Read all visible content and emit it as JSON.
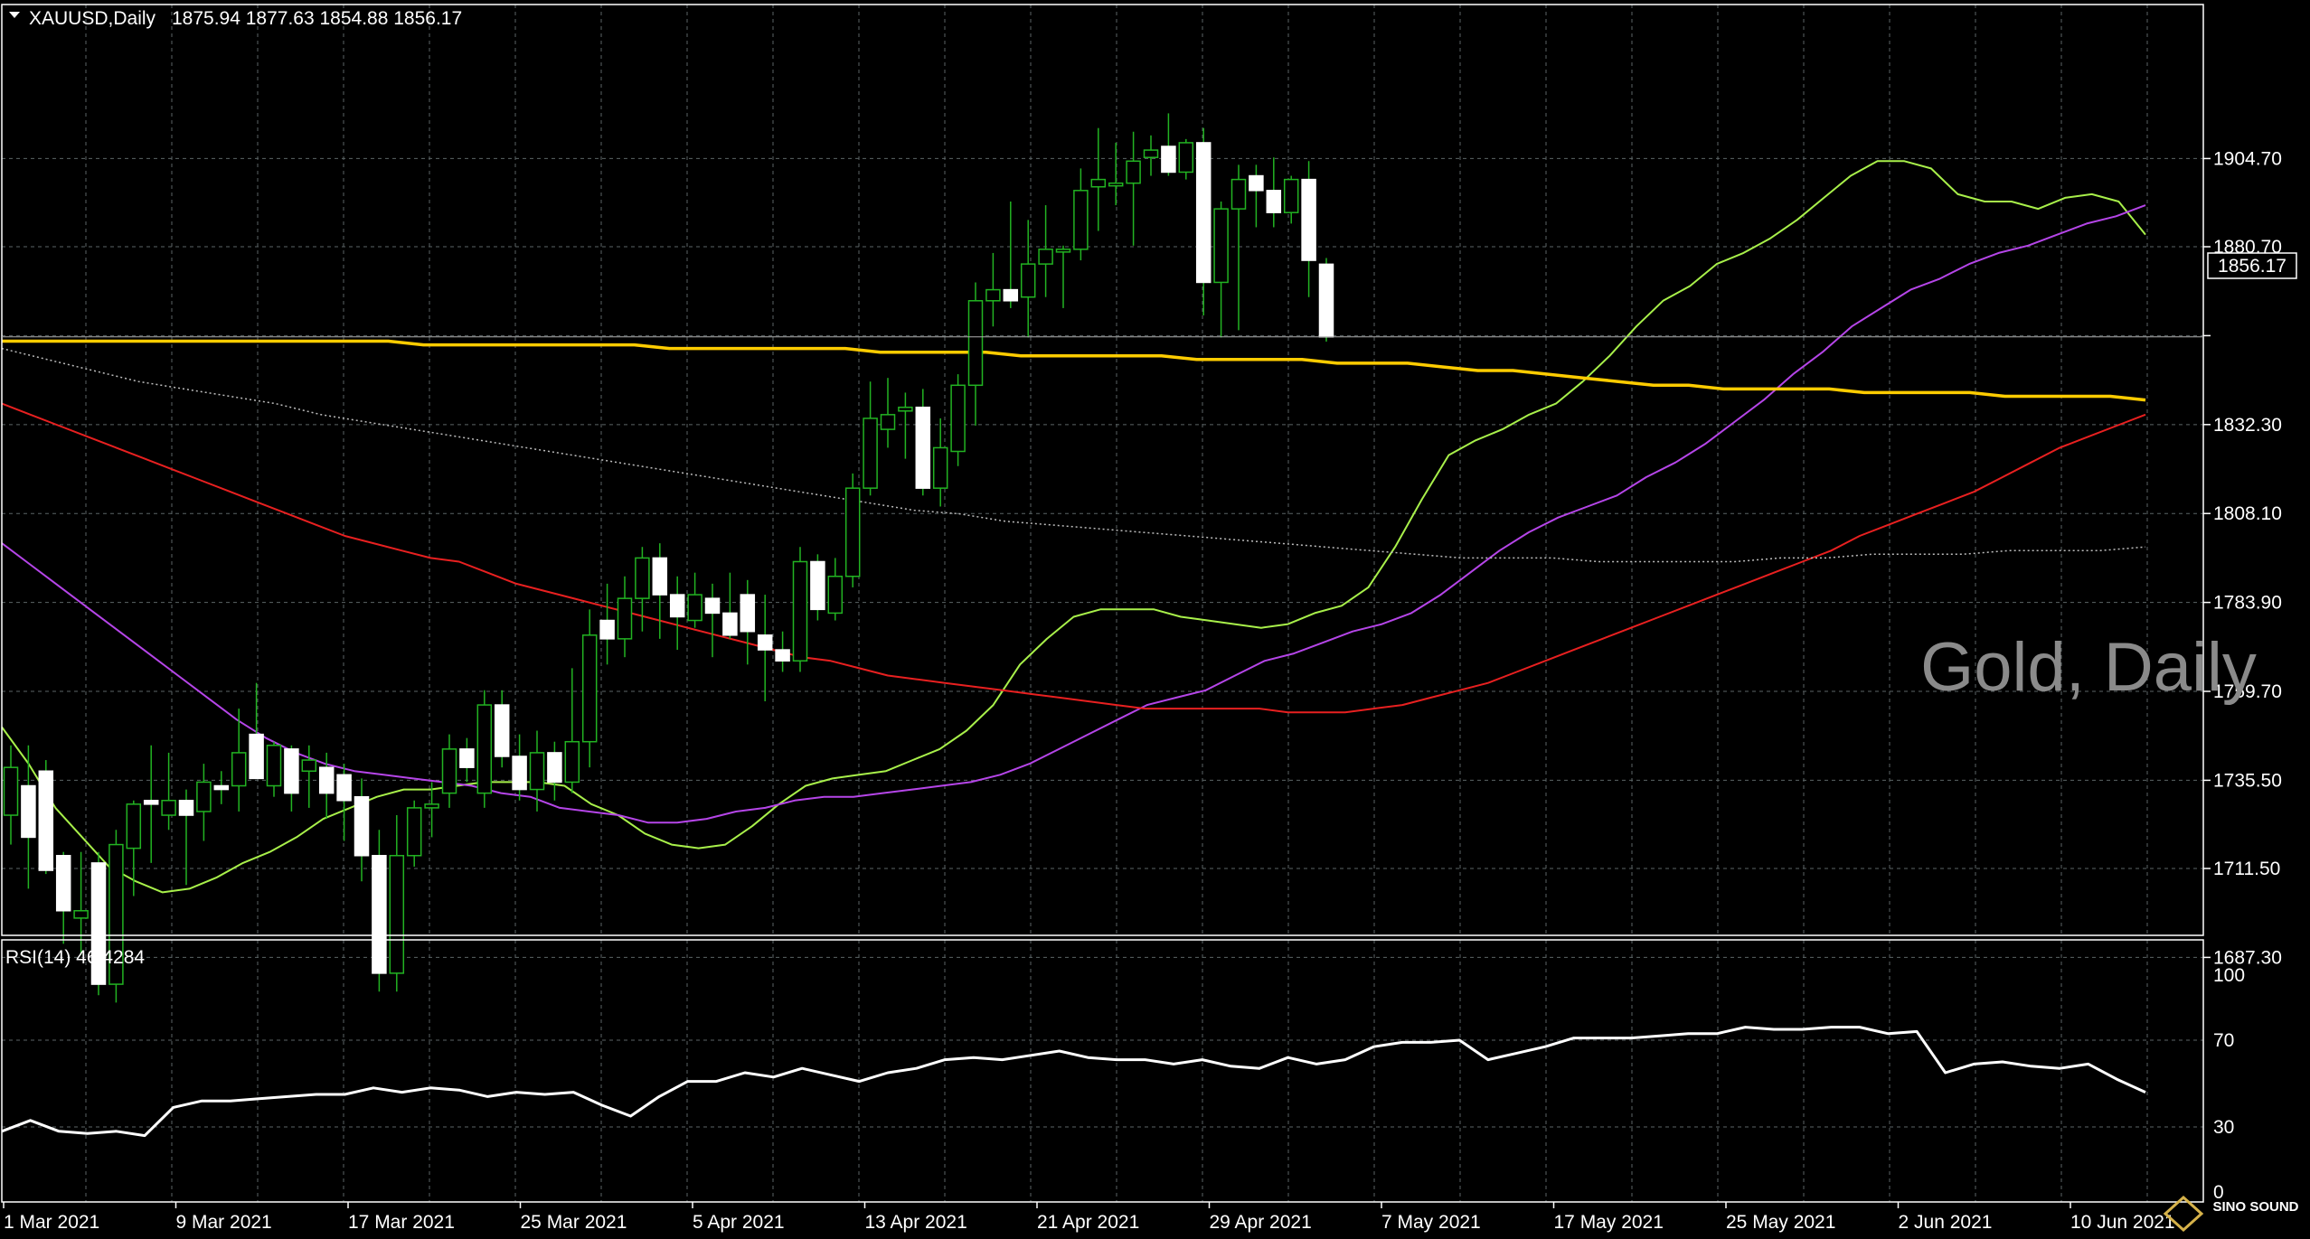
{
  "chart_data": {
    "type": "candlestick",
    "symbol_label": "XAUUSD,Daily",
    "ohlc_label": "1875.94 1877.63 1854.88 1856.17",
    "watermark": "Gold, Daily",
    "price_tag": "1856.17",
    "current_price": 1856.17,
    "price_axis": {
      "ticks": [
        1687.3,
        1711.5,
        1735.5,
        1759.7,
        1783.9,
        1808.1,
        1832.3,
        1856.5,
        1880.7,
        1904.7
      ],
      "tick_labels": [
        "1687.30",
        "1711.50",
        "1735.50",
        "1759.70",
        "1783.90",
        "1808.10",
        "1832.30",
        "1880.70",
        "1904.70"
      ]
    },
    "date_labels": [
      "1 Mar 2021",
      "9 Mar 2021",
      "17 Mar 2021",
      "25 Mar 2021",
      "5 Apr 2021",
      "13 Apr 2021",
      "21 Apr 2021",
      "29 Apr 2021",
      "7 May 2021",
      "17 May 2021",
      "25 May 2021",
      "2 Jun 2021",
      "10 Jun 2021"
    ],
    "candles": [
      {
        "o": 1726,
        "h": 1745,
        "l": 1718,
        "c": 1739
      },
      {
        "o": 1734,
        "h": 1745,
        "l": 1706,
        "c": 1720
      },
      {
        "o": 1738,
        "h": 1741,
        "l": 1710,
        "c": 1711
      },
      {
        "o": 1715,
        "h": 1716,
        "l": 1691,
        "c": 1700
      },
      {
        "o": 1698,
        "h": 1716,
        "l": 1688,
        "c": 1700
      },
      {
        "o": 1713,
        "h": 1716,
        "l": 1677,
        "c": 1680
      },
      {
        "o": 1680,
        "h": 1722,
        "l": 1675,
        "c": 1718
      },
      {
        "o": 1717,
        "h": 1730,
        "l": 1704,
        "c": 1729
      },
      {
        "o": 1730,
        "h": 1745,
        "l": 1713,
        "c": 1729
      },
      {
        "o": 1726,
        "h": 1743,
        "l": 1722,
        "c": 1730
      },
      {
        "o": 1730,
        "h": 1733,
        "l": 1707,
        "c": 1726
      },
      {
        "o": 1727,
        "h": 1740,
        "l": 1719,
        "c": 1735
      },
      {
        "o": 1734,
        "h": 1738,
        "l": 1729,
        "c": 1733
      },
      {
        "o": 1734,
        "h": 1755,
        "l": 1727,
        "c": 1743
      },
      {
        "o": 1748,
        "h": 1762,
        "l": 1736,
        "c": 1736
      },
      {
        "o": 1734,
        "h": 1746,
        "l": 1731,
        "c": 1745
      },
      {
        "o": 1744,
        "h": 1745,
        "l": 1727,
        "c": 1732
      },
      {
        "o": 1738,
        "h": 1745,
        "l": 1728,
        "c": 1741
      },
      {
        "o": 1739,
        "h": 1743,
        "l": 1725,
        "c": 1732
      },
      {
        "o": 1737,
        "h": 1740,
        "l": 1719,
        "c": 1730
      },
      {
        "o": 1731,
        "h": 1736,
        "l": 1708,
        "c": 1715
      },
      {
        "o": 1715,
        "h": 1722,
        "l": 1678,
        "c": 1683
      },
      {
        "o": 1683,
        "h": 1726,
        "l": 1678,
        "c": 1715
      },
      {
        "o": 1715,
        "h": 1730,
        "l": 1712,
        "c": 1728
      },
      {
        "o": 1728,
        "h": 1735,
        "l": 1720,
        "c": 1729
      },
      {
        "o": 1732,
        "h": 1748,
        "l": 1728,
        "c": 1744
      },
      {
        "o": 1744,
        "h": 1747,
        "l": 1735,
        "c": 1739
      },
      {
        "o": 1732,
        "h": 1760,
        "l": 1728,
        "c": 1756
      },
      {
        "o": 1756,
        "h": 1760,
        "l": 1739,
        "c": 1742
      },
      {
        "o": 1742,
        "h": 1748,
        "l": 1730,
        "c": 1733
      },
      {
        "o": 1733,
        "h": 1749,
        "l": 1727,
        "c": 1743
      },
      {
        "o": 1743,
        "h": 1746,
        "l": 1730,
        "c": 1735
      },
      {
        "o": 1735,
        "h": 1766,
        "l": 1732,
        "c": 1746
      },
      {
        "o": 1746,
        "h": 1782,
        "l": 1739,
        "c": 1775
      },
      {
        "o": 1779,
        "h": 1789,
        "l": 1767,
        "c": 1774
      },
      {
        "o": 1774,
        "h": 1791,
        "l": 1769,
        "c": 1785
      },
      {
        "o": 1785,
        "h": 1799,
        "l": 1776,
        "c": 1796
      },
      {
        "o": 1796,
        "h": 1800,
        "l": 1774,
        "c": 1786
      },
      {
        "o": 1786,
        "h": 1791,
        "l": 1771,
        "c": 1780
      },
      {
        "o": 1779,
        "h": 1792,
        "l": 1777,
        "c": 1786
      },
      {
        "o": 1785,
        "h": 1789,
        "l": 1769,
        "c": 1781
      },
      {
        "o": 1781,
        "h": 1792,
        "l": 1774,
        "c": 1775
      },
      {
        "o": 1786,
        "h": 1790,
        "l": 1767,
        "c": 1776
      },
      {
        "o": 1775,
        "h": 1786,
        "l": 1757,
        "c": 1771
      },
      {
        "o": 1771,
        "h": 1776,
        "l": 1765,
        "c": 1768
      },
      {
        "o": 1768,
        "h": 1799,
        "l": 1765,
        "c": 1795
      },
      {
        "o": 1795,
        "h": 1797,
        "l": 1779,
        "c": 1782
      },
      {
        "o": 1781,
        "h": 1796,
        "l": 1779,
        "c": 1791
      },
      {
        "o": 1791,
        "h": 1819,
        "l": 1788,
        "c": 1815
      },
      {
        "o": 1815,
        "h": 1844,
        "l": 1813,
        "c": 1834
      },
      {
        "o": 1831,
        "h": 1845,
        "l": 1826,
        "c": 1835
      },
      {
        "o": 1836,
        "h": 1841,
        "l": 1823,
        "c": 1837
      },
      {
        "o": 1837,
        "h": 1842,
        "l": 1813,
        "c": 1815
      },
      {
        "o": 1815,
        "h": 1834,
        "l": 1810,
        "c": 1826
      },
      {
        "o": 1825,
        "h": 1846,
        "l": 1821,
        "c": 1843
      },
      {
        "o": 1843,
        "h": 1871,
        "l": 1832,
        "c": 1866
      },
      {
        "o": 1866,
        "h": 1879,
        "l": 1859,
        "c": 1869
      },
      {
        "o": 1869,
        "h": 1893,
        "l": 1864,
        "c": 1866
      },
      {
        "o": 1867,
        "h": 1888,
        "l": 1856,
        "c": 1876
      },
      {
        "o": 1876,
        "h": 1892,
        "l": 1867,
        "c": 1880
      },
      {
        "o": 1880,
        "h": 1881,
        "l": 1864,
        "c": 1880
      },
      {
        "o": 1880,
        "h": 1902,
        "l": 1877,
        "c": 1896
      },
      {
        "o": 1897,
        "h": 1913,
        "l": 1885,
        "c": 1899
      },
      {
        "o": 1898,
        "h": 1909,
        "l": 1892,
        "c": 1898
      },
      {
        "o": 1898,
        "h": 1912,
        "l": 1881,
        "c": 1904
      },
      {
        "o": 1905,
        "h": 1911,
        "l": 1900,
        "c": 1907
      },
      {
        "o": 1908,
        "h": 1917,
        "l": 1900,
        "c": 1901
      },
      {
        "o": 1901,
        "h": 1910,
        "l": 1899,
        "c": 1909
      },
      {
        "o": 1909,
        "h": 1913,
        "l": 1862,
        "c": 1871
      },
      {
        "o": 1871,
        "h": 1893,
        "l": 1856,
        "c": 1891
      },
      {
        "o": 1891,
        "h": 1903,
        "l": 1858,
        "c": 1899
      },
      {
        "o": 1900,
        "h": 1903,
        "l": 1886,
        "c": 1896
      },
      {
        "o": 1896,
        "h": 1905,
        "l": 1886,
        "c": 1890
      },
      {
        "o": 1890,
        "h": 1900,
        "l": 1887,
        "c": 1899
      },
      {
        "o": 1899,
        "h": 1904,
        "l": 1867,
        "c": 1877
      },
      {
        "o": 1875.94,
        "h": 1877.63,
        "l": 1854.88,
        "c": 1856.17
      }
    ],
    "rsi": {
      "label": "RSI(14) 46.4284",
      "ticks": [
        100,
        70,
        30,
        0
      ],
      "values": [
        28,
        33,
        28,
        27,
        28,
        26,
        39,
        42,
        42,
        43,
        44,
        45,
        45,
        48,
        46,
        48,
        47,
        44,
        46,
        45,
        46,
        40,
        35,
        44,
        51,
        51,
        55,
        53,
        57,
        54,
        51,
        55,
        57,
        61,
        62,
        61,
        63,
        65,
        62,
        61,
        61,
        59,
        61,
        58,
        57,
        62,
        59,
        61,
        67,
        69,
        69,
        70,
        61,
        64,
        67,
        71,
        71,
        71,
        72,
        73,
        73,
        76,
        75,
        75,
        76,
        76,
        73,
        74,
        55,
        59,
        60,
        58,
        57,
        59,
        52,
        46
      ]
    },
    "moving_averages": [
      {
        "color": "#a8f04a",
        "values": [
          1750,
          1740,
          1728,
          1720,
          1712,
          1708,
          1705,
          1706,
          1709,
          1713,
          1716,
          1720,
          1725,
          1728,
          1731,
          1733,
          1733,
          1734,
          1735,
          1735,
          1735,
          1734,
          1729,
          1726,
          1721,
          1718,
          1717,
          1718,
          1723,
          1729,
          1734,
          1736,
          1737,
          1738,
          1741,
          1744,
          1749,
          1756,
          1767,
          1774,
          1780,
          1782,
          1782,
          1782,
          1780,
          1779,
          1778,
          1777,
          1778,
          1781,
          1783,
          1788,
          1799,
          1812,
          1824,
          1828,
          1831,
          1835,
          1838,
          1844,
          1851,
          1859,
          1866,
          1870,
          1876,
          1879,
          1883,
          1888,
          1894,
          1900,
          1904,
          1904,
          1902,
          1895,
          1893,
          1893,
          1891,
          1894,
          1895,
          1893,
          1884
        ]
      },
      {
        "color": "#b545e8",
        "values": [
          1800,
          1794,
          1788,
          1782,
          1776,
          1770,
          1764,
          1758,
          1752,
          1747,
          1743,
          1740,
          1738,
          1737,
          1736,
          1735,
          1734,
          1732,
          1731,
          1728,
          1727,
          1726,
          1724,
          1724,
          1725,
          1727,
          1728,
          1730,
          1731,
          1731,
          1732,
          1733,
          1734,
          1735,
          1737,
          1740,
          1744,
          1748,
          1752,
          1756,
          1758,
          1760,
          1764,
          1768,
          1770,
          1773,
          1776,
          1778,
          1781,
          1786,
          1792,
          1798,
          1803,
          1807,
          1810,
          1813,
          1818,
          1822,
          1827,
          1833,
          1839,
          1846,
          1852,
          1859,
          1864,
          1869,
          1872,
          1876,
          1879,
          1881,
          1884,
          1887,
          1889,
          1892
        ]
      },
      {
        "color": "#e82020",
        "values": [
          1838,
          1835,
          1832,
          1829,
          1826,
          1823,
          1820,
          1817,
          1814,
          1811,
          1808,
          1805,
          1802,
          1800,
          1798,
          1796,
          1795,
          1792,
          1789,
          1787,
          1785,
          1783,
          1781,
          1779,
          1777,
          1775,
          1773,
          1771,
          1769,
          1768,
          1766,
          1764,
          1763,
          1762,
          1761,
          1760,
          1759,
          1758,
          1757,
          1756,
          1755,
          1755,
          1755,
          1755,
          1755,
          1754,
          1754,
          1754,
          1755,
          1756,
          1758,
          1760,
          1762,
          1765,
          1768,
          1771,
          1774,
          1777,
          1780,
          1783,
          1786,
          1789,
          1792,
          1795,
          1798,
          1802,
          1805,
          1808,
          1811,
          1814,
          1818,
          1822,
          1826,
          1829,
          1832,
          1835
        ]
      },
      {
        "color": "#ffcc00",
        "values": [
          1855,
          1855,
          1855,
          1855,
          1855,
          1855,
          1855,
          1855,
          1855,
          1855,
          1855,
          1855,
          1854,
          1854,
          1854,
          1854,
          1854,
          1854,
          1854,
          1853,
          1853,
          1853,
          1853,
          1853,
          1853,
          1852,
          1852,
          1852,
          1852,
          1851,
          1851,
          1851,
          1851,
          1851,
          1850,
          1850,
          1850,
          1850,
          1849,
          1849,
          1849,
          1848,
          1847,
          1847,
          1846,
          1845,
          1844,
          1843,
          1843,
          1842,
          1842,
          1842,
          1842,
          1841,
          1841,
          1841,
          1841,
          1840,
          1840,
          1840,
          1840,
          1839
        ]
      },
      {
        "color": "#bdbdbd",
        "values": [
          1853,
          1850,
          1847,
          1844,
          1842,
          1840,
          1838,
          1835,
          1833,
          1831,
          1829,
          1827,
          1825,
          1823,
          1821,
          1819,
          1817,
          1815,
          1813,
          1811,
          1809,
          1808,
          1806,
          1805,
          1804,
          1803,
          1802,
          1801,
          1800,
          1799,
          1798,
          1797,
          1796,
          1796,
          1796,
          1795,
          1795,
          1795,
          1795,
          1796,
          1796,
          1797,
          1797,
          1797,
          1798,
          1798,
          1798,
          1799
        ]
      }
    ]
  }
}
